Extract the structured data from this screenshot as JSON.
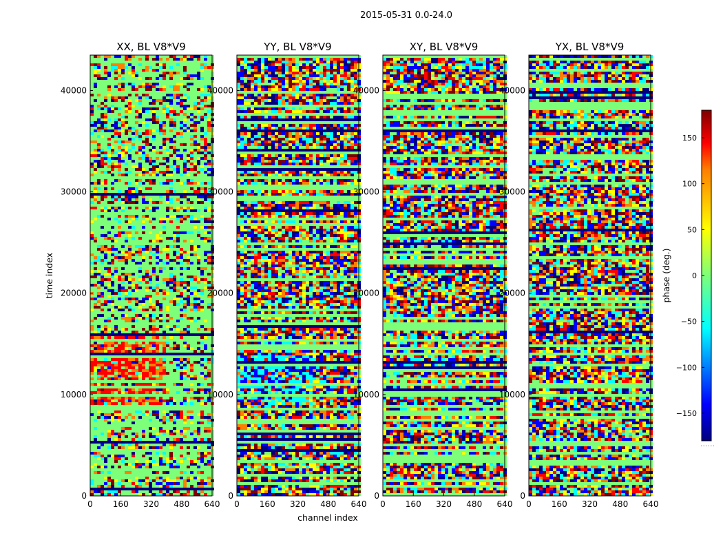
{
  "chart_data": {
    "type": "heatmap",
    "suptitle": "2015-05-31 0.0-24.0",
    "xlabel": "channel index",
    "ylabel": "time index",
    "xlim": [
      0,
      640
    ],
    "ylim": [
      0,
      43500
    ],
    "x_ticks": [
      0,
      160,
      320,
      480,
      640
    ],
    "x_tick_labels": [
      "0",
      "160",
      "320",
      "480",
      "640"
    ],
    "y_ticks": [
      0,
      10000,
      20000,
      30000,
      40000
    ],
    "y_tick_labels": [
      "0",
      "10000",
      "20000",
      "30000",
      "40000"
    ],
    "panels": [
      {
        "title": "XX, BL V8*V9",
        "dominant": "green",
        "feature_band": [
          9000,
          16000
        ],
        "feature_color": "red"
      },
      {
        "title": "YY, BL V8*V9",
        "dominant": "mixed",
        "feature_band": [
          9500,
          14000
        ],
        "feature_color": "cyan"
      },
      {
        "title": "XY, BL V8*V9",
        "dominant": "mixed",
        "feature_band": [
          9000,
          14000
        ],
        "feature_color": "mixed"
      },
      {
        "title": "YX, BL V8*V9",
        "dominant": "mixed",
        "feature_band": [
          9000,
          14000
        ],
        "feature_color": "mixed"
      }
    ],
    "colorbar": {
      "label": "phase (deg.)",
      "range": [
        -180,
        180
      ],
      "ticks": [
        150,
        100,
        50,
        0,
        -50,
        -100,
        -150
      ],
      "tick_labels": [
        "150",
        "100",
        "50",
        "0",
        "−50",
        "−100",
        "−150"
      ],
      "colormap": "jet",
      "footer": "......"
    },
    "colors": {
      "dark_blue": "#00007f",
      "blue": "#0000ff",
      "cyan": "#00ffff",
      "green": "#7dff7a",
      "yellow": "#ffff00",
      "orange": "#ff7f00",
      "red": "#ff0000",
      "dark_red": "#7f0000"
    }
  }
}
